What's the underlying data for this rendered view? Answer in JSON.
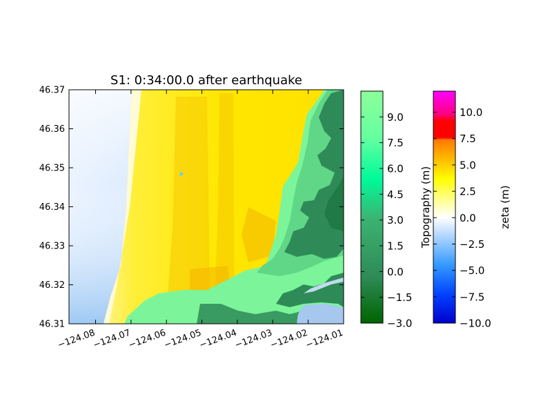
{
  "chart_data": {
    "type": "heatmap",
    "title": "S1: 0:34:00.0 after earthquake",
    "x": {
      "ticks": [
        -124.08,
        -124.07,
        -124.06,
        -124.05,
        -124.04,
        -124.03,
        -124.02,
        -124.01
      ],
      "tick_labels": [
        "−124.08",
        "−124.07",
        "−124.06",
        "−124.05",
        "−124.04",
        "−124.03",
        "−124.02",
        "−124.01"
      ],
      "range": [
        -124.0875,
        -124.01
      ]
    },
    "y": {
      "ticks": [
        46.31,
        46.32,
        46.33,
        46.34,
        46.35,
        46.36,
        46.37
      ],
      "tick_labels": [
        "46.31",
        "46.32",
        "46.33",
        "46.34",
        "46.35",
        "46.36",
        "46.37"
      ],
      "range": [
        46.31,
        46.37
      ]
    },
    "layers": [
      {
        "name": "Topography",
        "colorbar_label": "Topography (m)",
        "range": [
          -3.0,
          10.5
        ],
        "ticks": [
          -3.0,
          -1.5,
          0.0,
          1.5,
          3.0,
          4.5,
          6.0,
          7.5,
          9.0
        ],
        "tick_labels": [
          "−3.0",
          "−1.5",
          "0.0",
          "1.5",
          "3.0",
          "4.5",
          "6.0",
          "7.5",
          "9.0"
        ],
        "colors": [
          "#006400",
          "#2e8b57",
          "#3cb371",
          "#00fa9a",
          "#7cfc9c",
          "#8cff9a"
        ]
      },
      {
        "name": "zeta",
        "colorbar_label": "zeta (m)",
        "range": [
          -10.0,
          12.0
        ],
        "ticks": [
          -10.0,
          -7.5,
          -5.0,
          -2.5,
          0.0,
          2.5,
          5.0,
          7.5,
          10.0
        ],
        "tick_labels": [
          "−10.0",
          "−7.5",
          "−5.0",
          "−2.5",
          "0.0",
          "2.5",
          "5.0",
          "7.5",
          "10.0"
        ],
        "colors": [
          "#0000cc",
          "#0066ff",
          "#66b3ff",
          "#ffffff",
          "#ffff00",
          "#ffd200",
          "#ff8c00",
          "#ff0000",
          "#ff00ff"
        ]
      }
    ],
    "grid": false,
    "legend": "colorbars-right"
  }
}
